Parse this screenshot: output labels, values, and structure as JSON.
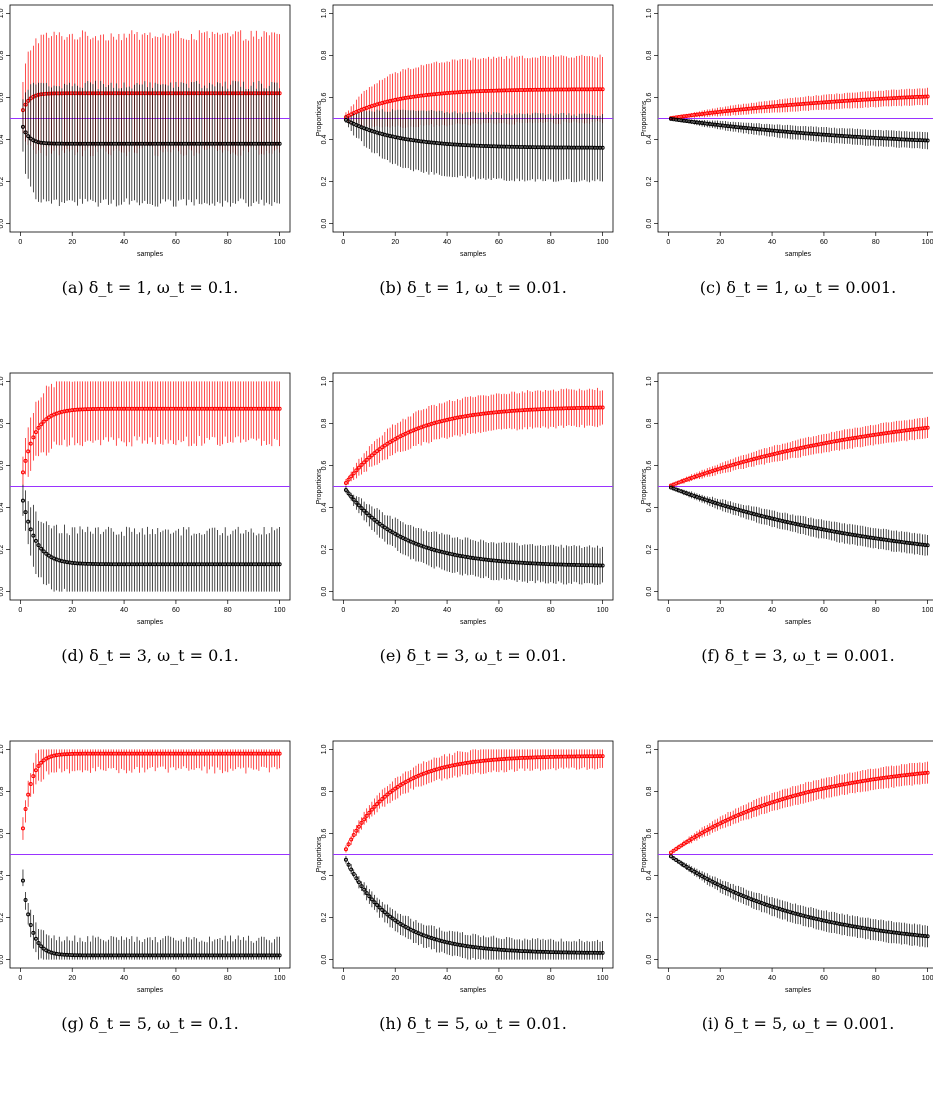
{
  "figure": {
    "colors": {
      "series_up": "#ff0000",
      "series_down": "#000000",
      "reference_line": "#9933ff"
    }
  },
  "chart_data": [
    {
      "type": "line",
      "caption": "(a) δ_t = 1, ω_t = 0.1.",
      "xlabel": "samples",
      "ylabel": "Proportions",
      "xlim": [
        0,
        100
      ],
      "ylim": [
        0,
        1
      ],
      "x_ticks": [
        "0",
        "20",
        "40",
        "60",
        "80",
        "100"
      ],
      "y_ticks": [
        "0.0",
        "0.2",
        "0.4",
        "0.6",
        "0.8",
        "1.0"
      ],
      "reference_y": 0.5,
      "series": [
        {
          "color": "#ff0000",
          "k": 0.4,
          "final": 0.62,
          "band_final": 0.25,
          "band_growth": 0.5,
          "noise": 0.05
        },
        {
          "color": "#000000",
          "k": 0.4,
          "final": 0.38,
          "band_final": 0.26,
          "band_growth": 0.5,
          "noise": 0.04
        }
      ]
    },
    {
      "type": "line",
      "caption": "(b) δ_t = 1, ω_t = 0.01.",
      "xlabel": "samples",
      "ylabel": "Proportions",
      "xlim": [
        0,
        100
      ],
      "ylim": [
        0,
        1
      ],
      "x_ticks": [
        "0",
        "20",
        "40",
        "60",
        "80",
        "100"
      ],
      "y_ticks": [
        "0.0",
        "0.2",
        "0.4",
        "0.6",
        "0.8",
        "1.0"
      ],
      "reference_y": 0.5,
      "series": [
        {
          "color": "#ff0000",
          "k": 0.05,
          "final": 0.64,
          "band_final": 0.15,
          "band_growth": 0.08,
          "noise": 0.015
        },
        {
          "color": "#000000",
          "k": 0.05,
          "final": 0.36,
          "band_final": 0.15,
          "band_growth": 0.08,
          "noise": 0.015
        }
      ]
    },
    {
      "type": "line",
      "caption": "(c) δ_t = 1, ω_t = 0.001.",
      "xlabel": "samples",
      "ylabel": "Proportions",
      "xlim": [
        0,
        100
      ],
      "ylim": [
        0,
        1
      ],
      "x_ticks": [
        "0",
        "20",
        "40",
        "60",
        "80",
        "100"
      ],
      "y_ticks": [
        "0.0",
        "0.2",
        "0.4",
        "0.6",
        "0.8",
        "1.0"
      ],
      "reference_y": 0.5,
      "series": [
        {
          "color": "#ff0000",
          "k": 0.012,
          "final": 0.65,
          "band_final": 0.04,
          "band_growth": 0.03,
          "noise": 0.004
        },
        {
          "color": "#000000",
          "k": 0.012,
          "final": 0.35,
          "band_final": 0.04,
          "band_growth": 0.03,
          "noise": 0.004
        }
      ]
    },
    {
      "type": "line",
      "caption": "(d) δ_t = 3, ω_t = 0.1.",
      "xlabel": "samples",
      "ylabel": "Proportions",
      "xlim": [
        0,
        100
      ],
      "ylim": [
        0,
        1
      ],
      "x_ticks": [
        "0",
        "20",
        "40",
        "60",
        "80",
        "100"
      ],
      "y_ticks": [
        "0.0",
        "0.2",
        "0.4",
        "0.6",
        "0.8",
        "1.0"
      ],
      "reference_y": 0.5,
      "series": [
        {
          "color": "#ff0000",
          "k": 0.2,
          "final": 0.87,
          "band_final": 0.13,
          "band_growth": 0.3,
          "noise": 0.05
        },
        {
          "color": "#000000",
          "k": 0.2,
          "final": 0.13,
          "band_final": 0.13,
          "band_growth": 0.3,
          "noise": 0.05
        }
      ]
    },
    {
      "type": "line",
      "caption": "(e) δ_t = 3, ω_t = 0.01.",
      "xlabel": "samples",
      "ylabel": "Proportions",
      "xlim": [
        0,
        100
      ],
      "ylim": [
        0,
        1
      ],
      "x_ticks": [
        "0",
        "20",
        "40",
        "60",
        "80",
        "100"
      ],
      "y_ticks": [
        "0.0",
        "0.2",
        "0.4",
        "0.6",
        "0.8",
        "1.0"
      ],
      "reference_y": 0.5,
      "series": [
        {
          "color": "#ff0000",
          "k": 0.045,
          "final": 0.88,
          "band_final": 0.08,
          "band_growth": 0.08,
          "noise": 0.015
        },
        {
          "color": "#000000",
          "k": 0.045,
          "final": 0.12,
          "band_final": 0.08,
          "band_growth": 0.08,
          "noise": 0.015
        }
      ]
    },
    {
      "type": "line",
      "caption": "(f) δ_t = 3, ω_t = 0.001.",
      "xlabel": "samples",
      "ylabel": "Proportions",
      "xlim": [
        0,
        100
      ],
      "ylim": [
        0,
        1
      ],
      "x_ticks": [
        "0",
        "20",
        "40",
        "60",
        "80",
        "100"
      ],
      "y_ticks": [
        "0.0",
        "0.2",
        "0.4",
        "0.6",
        "0.8",
        "1.0"
      ],
      "reference_y": 0.5,
      "series": [
        {
          "color": "#ff0000",
          "k": 0.012,
          "final": 0.9,
          "band_final": 0.05,
          "band_growth": 0.03,
          "noise": 0.006
        },
        {
          "color": "#000000",
          "k": 0.012,
          "final": 0.1,
          "band_final": 0.05,
          "band_growth": 0.03,
          "noise": 0.006
        }
      ]
    },
    {
      "type": "line",
      "caption": "(g) δ_t = 5, ω_t = 0.1.",
      "xlabel": "samples",
      "ylabel": "Proportions",
      "xlim": [
        0,
        100
      ],
      "ylim": [
        0,
        1
      ],
      "x_ticks": [
        "0",
        "20",
        "40",
        "60",
        "80",
        "100"
      ],
      "y_ticks": [
        "0.0",
        "0.2",
        "0.4",
        "0.6",
        "0.8",
        "1.0"
      ],
      "reference_y": 0.5,
      "series": [
        {
          "color": "#ff0000",
          "k": 0.3,
          "final": 0.98,
          "band_final": 0.06,
          "band_growth": 0.4,
          "noise": 0.035
        },
        {
          "color": "#000000",
          "k": 0.3,
          "final": 0.02,
          "band_final": 0.06,
          "band_growth": 0.4,
          "noise": 0.035
        }
      ]
    },
    {
      "type": "line",
      "caption": "(h) δ_t = 5, ω_t = 0.01.",
      "xlabel": "samples",
      "ylabel": "Proportions",
      "xlim": [
        0,
        100
      ],
      "ylim": [
        0,
        1
      ],
      "x_ticks": [
        "0",
        "20",
        "40",
        "60",
        "80",
        "100"
      ],
      "y_ticks": [
        "0.0",
        "0.2",
        "0.4",
        "0.6",
        "0.8",
        "1.0"
      ],
      "reference_y": 0.5,
      "series": [
        {
          "color": "#ff0000",
          "k": 0.055,
          "final": 0.97,
          "band_final": 0.05,
          "band_growth": 0.08,
          "noise": 0.015
        },
        {
          "color": "#000000",
          "k": 0.055,
          "final": 0.03,
          "band_final": 0.05,
          "band_growth": 0.08,
          "noise": 0.015
        }
      ]
    },
    {
      "type": "line",
      "caption": "(i) δ_t = 5, ω_t = 0.001.",
      "xlabel": "samples",
      "ylabel": "Proportions",
      "xlim": [
        0,
        100
      ],
      "ylim": [
        0,
        1
      ],
      "x_ticks": [
        "0",
        "20",
        "40",
        "60",
        "80",
        "100"
      ],
      "y_ticks": [
        "0.0",
        "0.2",
        "0.4",
        "0.6",
        "0.8",
        "1.0"
      ],
      "reference_y": 0.5,
      "series": [
        {
          "color": "#ff0000",
          "k": 0.02,
          "final": 0.95,
          "band_final": 0.05,
          "band_growth": 0.04,
          "noise": 0.006
        },
        {
          "color": "#000000",
          "k": 0.02,
          "final": 0.05,
          "band_final": 0.05,
          "band_growth": 0.04,
          "noise": 0.006
        }
      ]
    }
  ]
}
